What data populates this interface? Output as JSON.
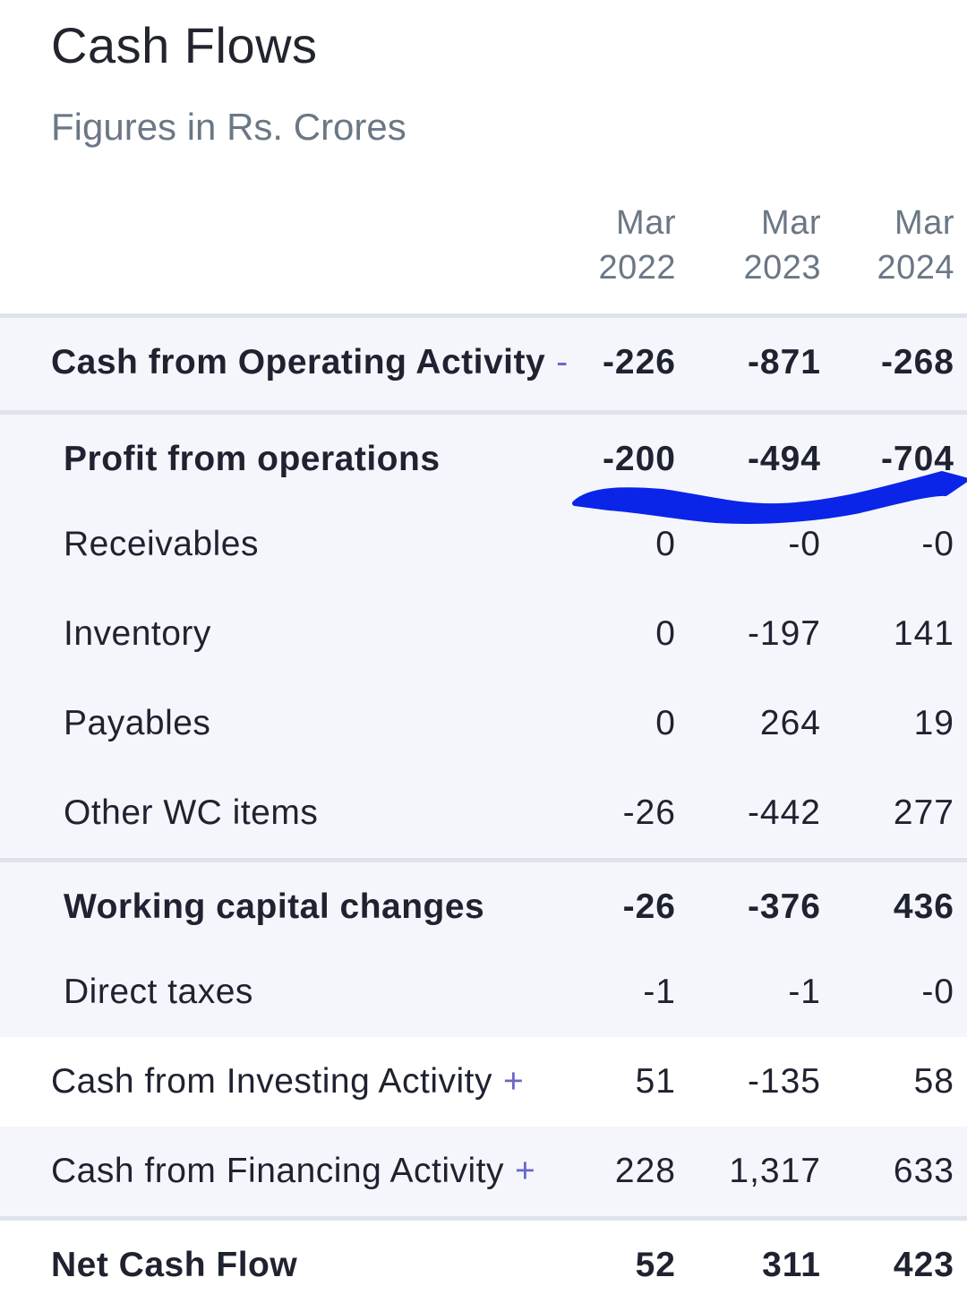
{
  "header": {
    "title": "Cash Flows",
    "subtitle": "Figures in Rs. Crores"
  },
  "columns": [
    {
      "month": "Mar",
      "year": "2022"
    },
    {
      "month": "Mar",
      "year": "2023"
    },
    {
      "month": "Mar",
      "year": "2024"
    }
  ],
  "rows": [
    {
      "label": "Cash from Operating Activity",
      "toggle": "-",
      "values": [
        "-226",
        "-871",
        "-268"
      ]
    },
    {
      "label": "Profit from operations",
      "values": [
        "-200",
        "-494",
        "-704"
      ]
    },
    {
      "label": "Receivables",
      "values": [
        "0",
        "-0",
        "-0"
      ]
    },
    {
      "label": "Inventory",
      "values": [
        "0",
        "-197",
        "141"
      ]
    },
    {
      "label": "Payables",
      "values": [
        "0",
        "264",
        "19"
      ]
    },
    {
      "label": "Other WC items",
      "values": [
        "-26",
        "-442",
        "277"
      ]
    },
    {
      "label": "Working capital changes",
      "values": [
        "-26",
        "-376",
        "436"
      ]
    },
    {
      "label": "Direct taxes",
      "values": [
        "-1",
        "-1",
        "-0"
      ]
    },
    {
      "label": "Cash from Investing Activity",
      "toggle": "+",
      "values": [
        "51",
        "-135",
        "58"
      ]
    },
    {
      "label": "Cash from Financing Activity",
      "toggle": "+",
      "values": [
        "228",
        "1,317",
        "633"
      ]
    },
    {
      "label": "Net Cash Flow",
      "values": [
        "52",
        "311",
        "423"
      ]
    }
  ],
  "colors": {
    "annotation": "#0a25e8",
    "accent": "#6a68c9",
    "shade": "#f5f6fb"
  }
}
